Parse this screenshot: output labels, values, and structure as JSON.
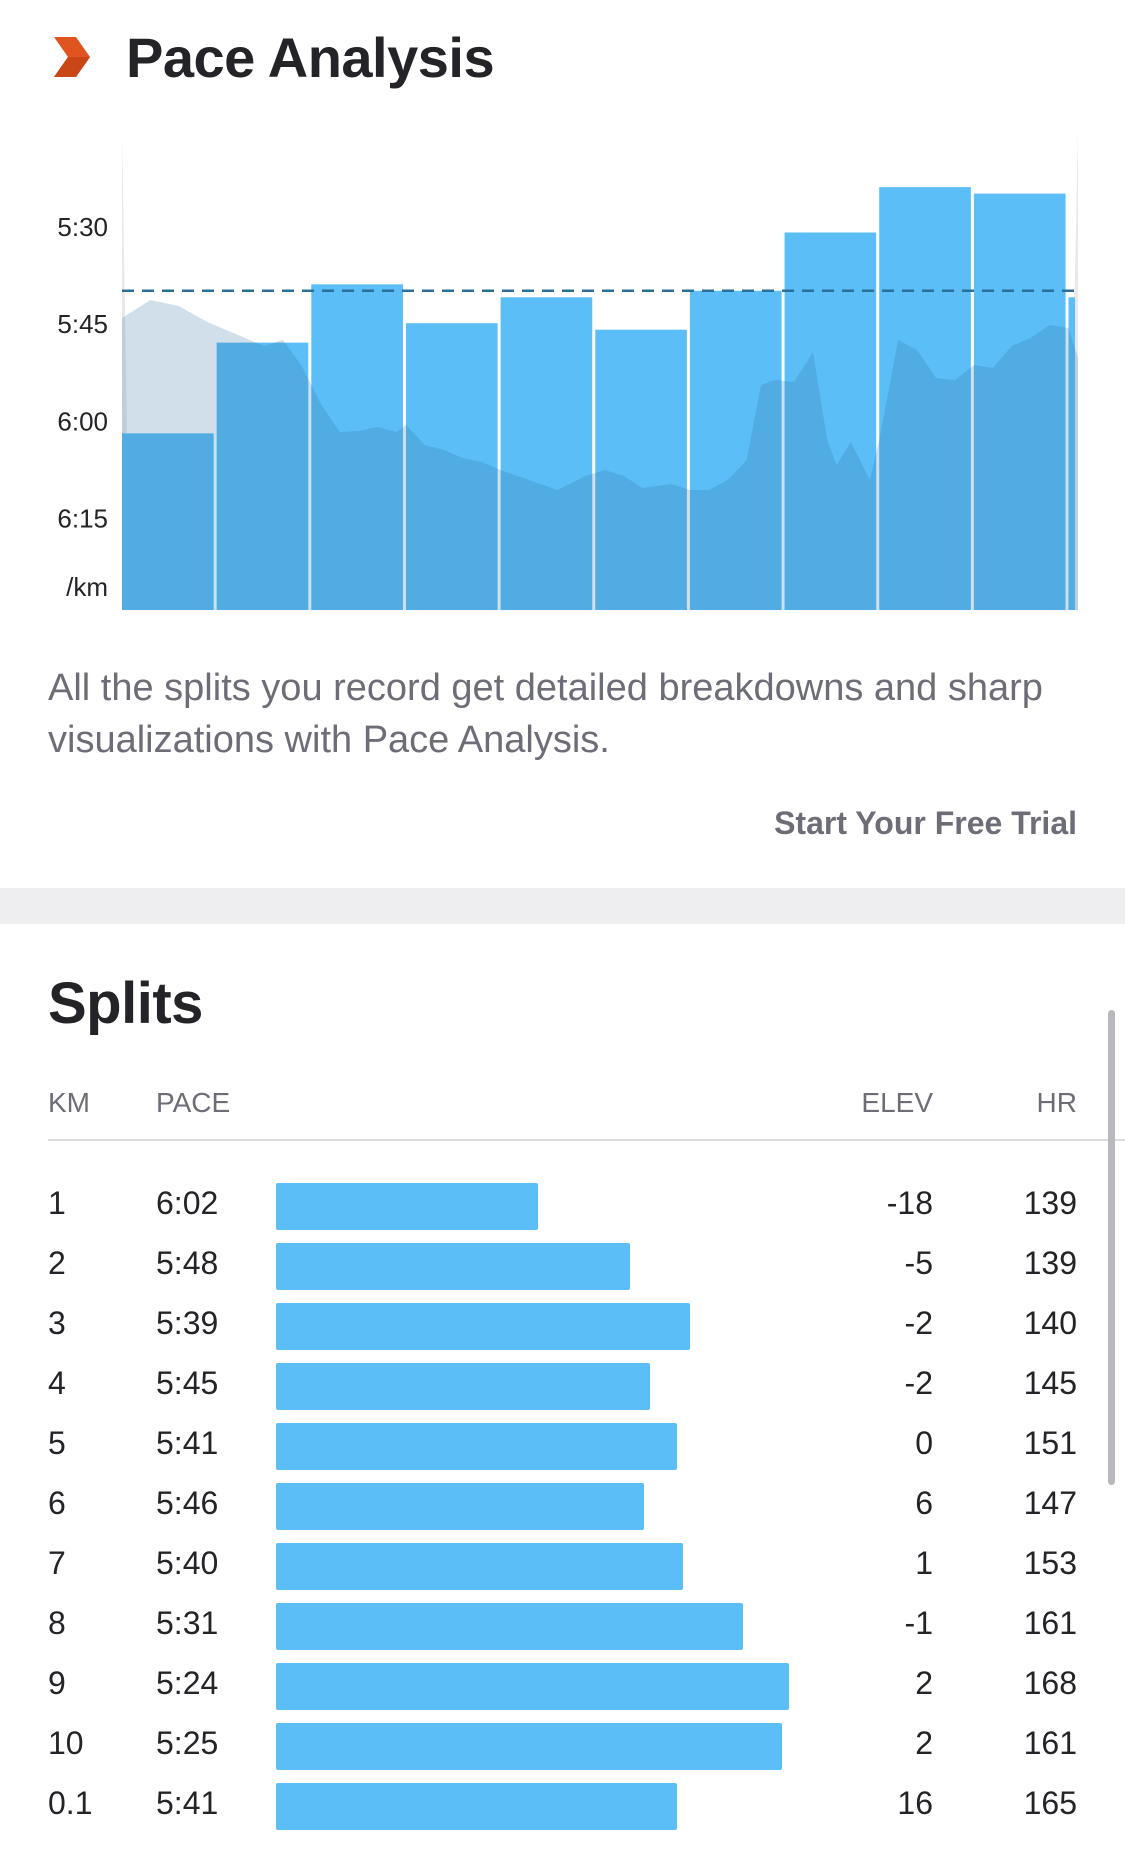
{
  "pace_analysis": {
    "title": "Pace Analysis",
    "icon": "chevron-right-icon",
    "description": "All the splits you record get detailed breakdowns and sharp visualizations with Pace Analysis.",
    "cta_label": "Start Your Free Trial"
  },
  "chart_data": {
    "type": "bar",
    "yaxis_labels": [
      "5:30",
      "5:45",
      "6:00",
      "6:15",
      "/km"
    ],
    "y_ticks_seconds": [
      330,
      345,
      360,
      375
    ],
    "y_inverted": true,
    "categories": [
      "1",
      "2",
      "3",
      "4",
      "5",
      "6",
      "7",
      "8",
      "9",
      "10",
      "0.1"
    ],
    "values_seconds": [
      362,
      348,
      339,
      345,
      341,
      346,
      340,
      331,
      324,
      325,
      341
    ],
    "distance_km": [
      1,
      1,
      1,
      1,
      1,
      1,
      1,
      1,
      1,
      1,
      0.1
    ],
    "average_line_seconds": 340,
    "bar_color": "#5cbef7",
    "average_line_color": "#2a6f99",
    "background_area": "heart-rate/elevation profile"
  },
  "splits": {
    "title": "Splits",
    "headers": {
      "km": "KM",
      "pace": "PACE",
      "elev": "ELEV",
      "hr": "HR"
    },
    "bar_color": "#5cbef7",
    "rows": [
      {
        "km": "1",
        "pace": "6:02",
        "elev": "-18",
        "hr": "139",
        "pace_seconds": 362
      },
      {
        "km": "2",
        "pace": "5:48",
        "elev": "-5",
        "hr": "139",
        "pace_seconds": 348
      },
      {
        "km": "3",
        "pace": "5:39",
        "elev": "-2",
        "hr": "140",
        "pace_seconds": 339
      },
      {
        "km": "4",
        "pace": "5:45",
        "elev": "-2",
        "hr": "145",
        "pace_seconds": 345
      },
      {
        "km": "5",
        "pace": "5:41",
        "elev": "0",
        "hr": "151",
        "pace_seconds": 341
      },
      {
        "km": "6",
        "pace": "5:46",
        "elev": "6",
        "hr": "147",
        "pace_seconds": 346
      },
      {
        "km": "7",
        "pace": "5:40",
        "elev": "1",
        "hr": "153",
        "pace_seconds": 340
      },
      {
        "km": "8",
        "pace": "5:31",
        "elev": "-1",
        "hr": "161",
        "pace_seconds": 331
      },
      {
        "km": "9",
        "pace": "5:24",
        "elev": "2",
        "hr": "168",
        "pace_seconds": 324
      },
      {
        "km": "10",
        "pace": "5:25",
        "elev": "2",
        "hr": "161",
        "pace_seconds": 325
      },
      {
        "km": "0.1",
        "pace": "5:41",
        "elev": "16",
        "hr": "165",
        "pace_seconds": 341
      }
    ]
  }
}
